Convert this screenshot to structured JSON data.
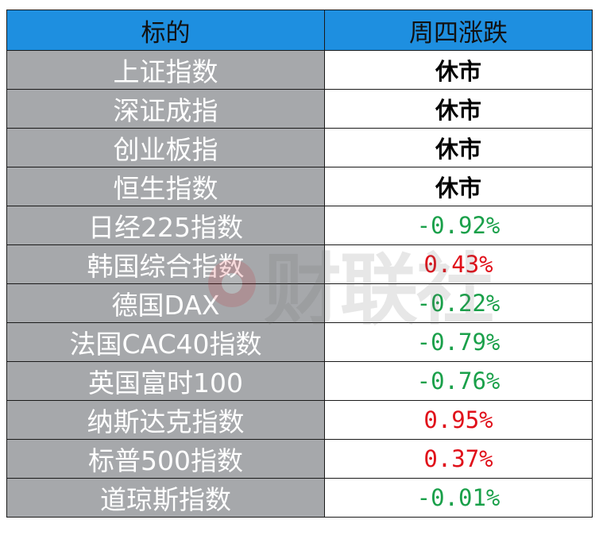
{
  "header": {
    "col_name": "标的",
    "col_change": "周四涨跌"
  },
  "rows": [
    {
      "name": "上证指数",
      "change": "休市",
      "status": "closed"
    },
    {
      "name": "深证成指",
      "change": "休市",
      "status": "closed"
    },
    {
      "name": "创业板指",
      "change": "休市",
      "status": "closed"
    },
    {
      "name": "恒生指数",
      "change": "休市",
      "status": "closed"
    },
    {
      "name": "日经225指数",
      "change": "-0.92%",
      "status": "down"
    },
    {
      "name": "韩国综合指数",
      "change": "0.43%",
      "status": "up"
    },
    {
      "name": "德国DAX",
      "change": "-0.22%",
      "status": "down"
    },
    {
      "name": "法国CAC40指数",
      "change": "-0.79%",
      "status": "down"
    },
    {
      "name": "英国富时100",
      "change": "-0.76%",
      "status": "down"
    },
    {
      "name": "纳斯达克指数",
      "change": "0.95%",
      "status": "up"
    },
    {
      "name": "标普500指数",
      "change": "0.37%",
      "status": "up"
    },
    {
      "name": "道琼斯指数",
      "change": "-0.01%",
      "status": "down"
    }
  ],
  "watermark": {
    "text": "财联社",
    "icon": "cls-logo-icon"
  },
  "colors": {
    "header_bg": "#1e8fe0",
    "name_bg": "#a6a8ab",
    "down": "#1aa04a",
    "up": "#e0101a"
  }
}
